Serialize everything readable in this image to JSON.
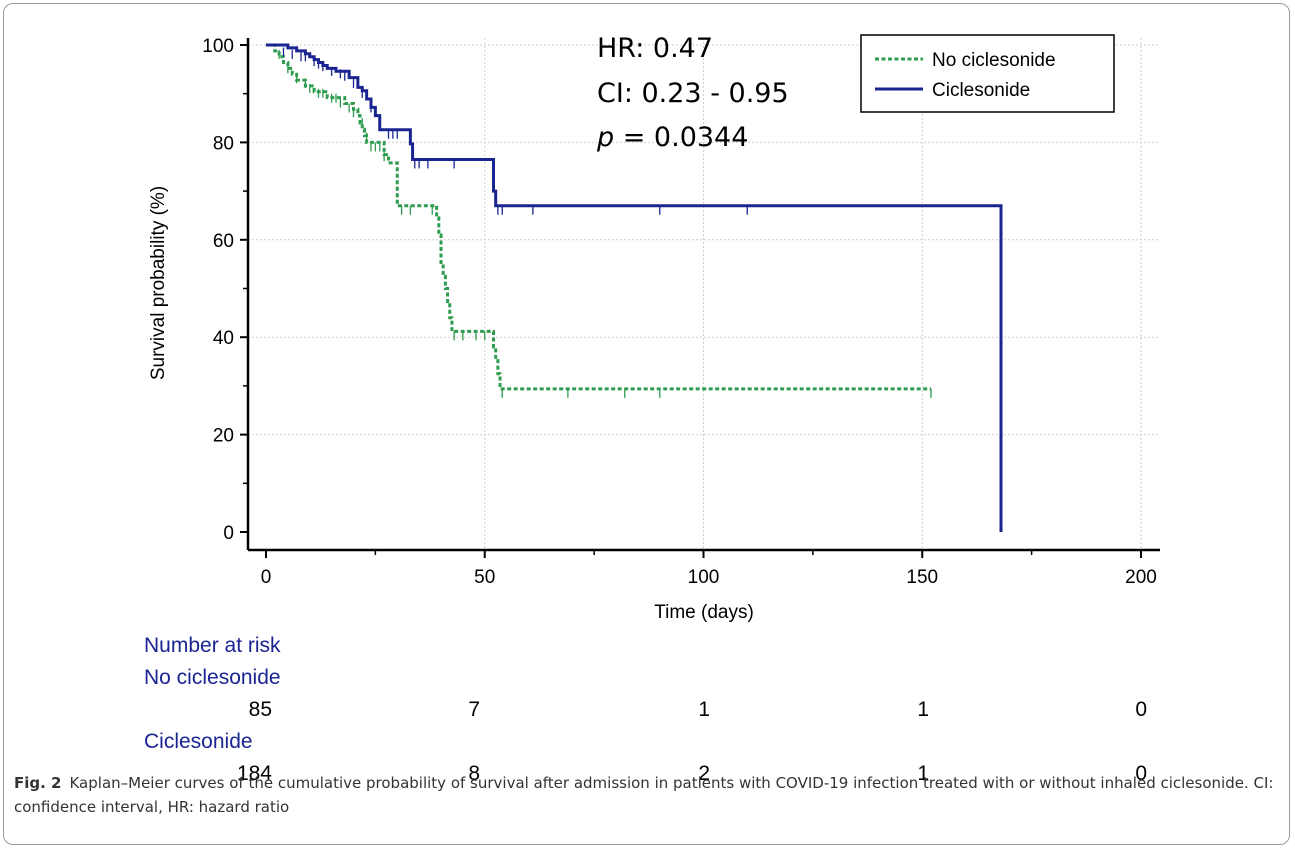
{
  "chart_data": {
    "type": "line",
    "subtype": "kaplan-meier",
    "xlabel": "Time (days)",
    "ylabel": "Survival probability (%)",
    "xlim": [
      0,
      200
    ],
    "ylim": [
      0,
      100
    ],
    "xticks": [
      0,
      50,
      100,
      150,
      200
    ],
    "yticks": [
      0,
      20,
      40,
      60,
      80,
      100
    ],
    "grid": true,
    "legend_position": "top-right",
    "annotations": {
      "hr": "HR: 0.47",
      "ci": "CI: 0.23 - 0.95",
      "p_symbol": "p",
      "p_value": " = 0.0344"
    },
    "series": [
      {
        "name": "No ciclesonide",
        "color": "#2e9c4f",
        "line_style": "dashed",
        "points": [
          [
            0,
            100
          ],
          [
            2,
            98.8
          ],
          [
            3,
            97.6
          ],
          [
            4,
            96.4
          ],
          [
            5,
            95.2
          ],
          [
            6,
            94
          ],
          [
            7,
            92.8
          ],
          [
            9,
            91.6
          ],
          [
            11,
            90.4
          ],
          [
            14,
            89.2
          ],
          [
            18,
            88
          ],
          [
            20,
            86.8
          ],
          [
            21,
            85.5
          ],
          [
            21.5,
            84
          ],
          [
            22,
            82.7
          ],
          [
            22.5,
            81.4
          ],
          [
            23,
            80
          ],
          [
            27,
            77.5
          ],
          [
            28,
            75.8
          ],
          [
            30,
            67
          ],
          [
            39,
            64.5
          ],
          [
            39.5,
            61
          ],
          [
            40,
            55
          ],
          [
            40.5,
            52.5
          ],
          [
            41,
            50
          ],
          [
            41.5,
            47
          ],
          [
            42,
            44
          ],
          [
            42.5,
            41.2
          ],
          [
            52,
            38
          ],
          [
            52.5,
            35.5
          ],
          [
            53,
            32.5
          ],
          [
            53.5,
            29.4
          ],
          [
            152,
            29.4
          ]
        ],
        "censored": [
          [
            3,
            99
          ],
          [
            5,
            96
          ],
          [
            7,
            94
          ],
          [
            9,
            93
          ],
          [
            10,
            92
          ],
          [
            12,
            91
          ],
          [
            13,
            91
          ],
          [
            15,
            90
          ],
          [
            16,
            90
          ],
          [
            17,
            89
          ],
          [
            19,
            88
          ],
          [
            20,
            87
          ],
          [
            22,
            85
          ],
          [
            23,
            82
          ],
          [
            24,
            80
          ],
          [
            25,
            80
          ],
          [
            26,
            80
          ],
          [
            27,
            78
          ],
          [
            31,
            67
          ],
          [
            33,
            67
          ],
          [
            38,
            67
          ],
          [
            43,
            41.2
          ],
          [
            45,
            41.2
          ],
          [
            48,
            41.2
          ],
          [
            50,
            41.2
          ],
          [
            54,
            29.4
          ],
          [
            69,
            29.4
          ],
          [
            82,
            29.4
          ],
          [
            90,
            29.4
          ],
          [
            152,
            29.4
          ]
        ]
      },
      {
        "name": "Ciclesonide",
        "color": "#1a2591",
        "line_style": "solid",
        "points": [
          [
            0,
            100
          ],
          [
            5,
            99.4
          ],
          [
            7,
            98.8
          ],
          [
            9,
            98.2
          ],
          [
            10,
            97.6
          ],
          [
            11,
            97
          ],
          [
            12,
            96.4
          ],
          [
            13,
            95.8
          ],
          [
            14,
            95.2
          ],
          [
            16,
            94.6
          ],
          [
            19,
            93.3
          ],
          [
            21,
            91.3
          ],
          [
            22,
            90.6
          ],
          [
            23,
            88.9
          ],
          [
            24,
            87.2
          ],
          [
            25,
            85.5
          ],
          [
            26,
            82.6
          ],
          [
            33,
            79.7
          ],
          [
            33.5,
            76.5
          ],
          [
            52,
            70
          ],
          [
            52.5,
            67
          ],
          [
            168,
            67
          ],
          [
            168,
            0
          ]
        ],
        "censored": [
          [
            4,
            99.5
          ],
          [
            6,
            99
          ],
          [
            8,
            98.5
          ],
          [
            9,
            98.5
          ],
          [
            11,
            97.5
          ],
          [
            12,
            97
          ],
          [
            13,
            96.5
          ],
          [
            15,
            95.5
          ],
          [
            17,
            95
          ],
          [
            18,
            94.5
          ],
          [
            20,
            93
          ],
          [
            22,
            91
          ],
          [
            24,
            88
          ],
          [
            28,
            82.6
          ],
          [
            29,
            82.6
          ],
          [
            30,
            82.6
          ],
          [
            34,
            76.5
          ],
          [
            35,
            76.5
          ],
          [
            37,
            76.5
          ],
          [
            43,
            76.5
          ],
          [
            53,
            67
          ],
          [
            54,
            67
          ],
          [
            61,
            67
          ],
          [
            90,
            67
          ],
          [
            110,
            67
          ]
        ]
      }
    ]
  },
  "risk_table": {
    "title": "Number at risk",
    "groups": [
      {
        "name": "No ciclesonide",
        "counts": [
          "85",
          "7",
          "1",
          "1",
          "0"
        ]
      },
      {
        "name": "Ciclesonide",
        "counts": [
          "184",
          "8",
          "2",
          "1",
          "0"
        ]
      }
    ]
  },
  "caption": {
    "label": "Fig. 2",
    "text": "Kaplan–Meier curves of the cumulative probability of survival after admission in patients with COVID-19 infection treated with or without inhaled ciclesonide. CI: confidence interval, HR: hazard ratio"
  }
}
